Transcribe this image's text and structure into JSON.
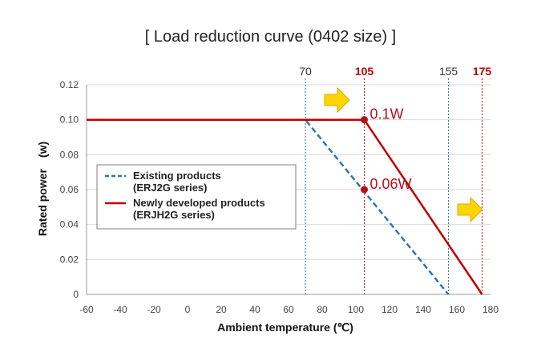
{
  "chart_data": {
    "type": "line",
    "title": "[ Load reduction curve (0402 size) ]",
    "xlabel": "Ambient temperature (℃)",
    "ylabel": "Rated power　(w)",
    "xlim": [
      -60,
      180
    ],
    "ylim": [
      0,
      0.12
    ],
    "x_ticks": [
      "-60",
      "-40",
      "-20",
      "0",
      "20",
      "40",
      "60",
      "80",
      "100",
      "120",
      "140",
      "160",
      "180"
    ],
    "y_ticks": [
      "0",
      "0.02",
      "0.04",
      "0.06",
      "0.08",
      "0.10",
      "0.12"
    ],
    "grid": "horizontal",
    "legend_position": "center-left",
    "series": [
      {
        "name": "Existing products",
        "sub": "(ERJ2G series)",
        "color": "#2e75b6",
        "dash": "dashed",
        "points": [
          [
            -60,
            0.1
          ],
          [
            70,
            0.1
          ],
          [
            155,
            0
          ]
        ]
      },
      {
        "name": "Newly developed products",
        "sub": "(ERJH2G series)",
        "color": "#c00000",
        "dash": "solid",
        "points": [
          [
            -60,
            0.1
          ],
          [
            105,
            0.1
          ],
          [
            175,
            0
          ]
        ]
      }
    ],
    "markers": [
      {
        "label": "70",
        "x": 70,
        "color": "#2e75b6",
        "text_color": "#333333",
        "bold": false
      },
      {
        "label": "105",
        "x": 105,
        "color": "#c00000",
        "text_color": "#c00000",
        "bold": true
      },
      {
        "label": "155",
        "x": 155,
        "color": "#2e75b6",
        "text_color": "#333333",
        "bold": false
      },
      {
        "label": "175",
        "x": 175,
        "color": "#c00000",
        "text_color": "#c00000",
        "bold": true
      }
    ],
    "annotations": [
      {
        "text": "0.1W",
        "x": 105,
        "y": 0.1
      },
      {
        "text": "0.06W",
        "x": 105,
        "y": 0.06
      }
    ],
    "arrow_color": "#ffd400"
  }
}
